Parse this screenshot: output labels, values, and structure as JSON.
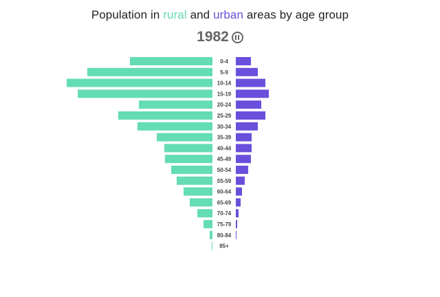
{
  "title": {
    "prefix": "Population in ",
    "rural": "rural",
    "middle": " and ",
    "urban": "urban",
    "suffix": " areas by age group"
  },
  "year": "1982",
  "colors": {
    "rural": "#64dcb4",
    "urban": "#6a4fdc",
    "label": "#444444"
  },
  "chart_data": {
    "type": "bar",
    "orientation": "horizontal-pyramid",
    "title": "Population in rural and urban areas by age group",
    "categories": [
      "0-4",
      "5-9",
      "10-14",
      "15-19",
      "20-24",
      "25-29",
      "30-34",
      "35-39",
      "40-44",
      "45-49",
      "50-54",
      "55-59",
      "60-64",
      "65-69",
      "70-74",
      "75-79",
      "80-84",
      "85+"
    ],
    "series": [
      {
        "name": "rural",
        "side": "left",
        "values": [
          120,
          182,
          212,
          196,
          107,
          137,
          109,
          81,
          70,
          69,
          60,
          52,
          42,
          33,
          22,
          13,
          4,
          1
        ]
      },
      {
        "name": "urban",
        "side": "right",
        "values": [
          22,
          32,
          43,
          48,
          37,
          43,
          32,
          23,
          23,
          22,
          18,
          13,
          9,
          7,
          4,
          2,
          1,
          0
        ]
      }
    ],
    "xlabel": "",
    "ylabel": "",
    "grid": false,
    "legend": "in title"
  }
}
